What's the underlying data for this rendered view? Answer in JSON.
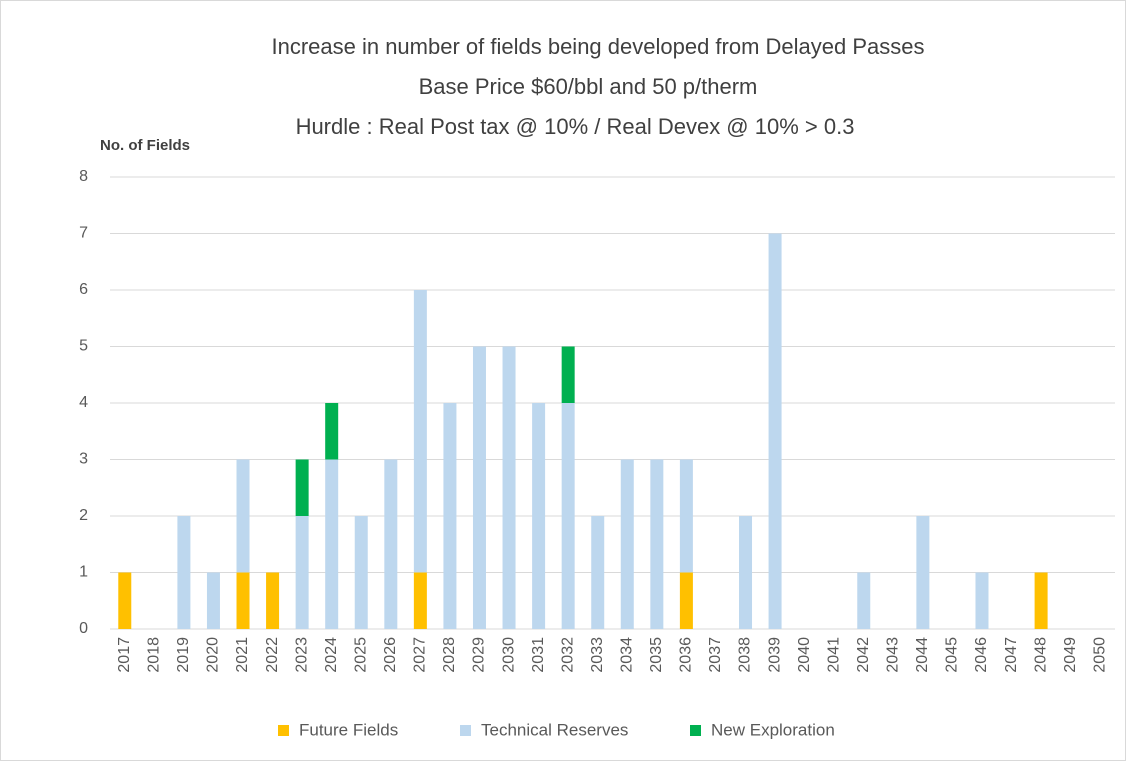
{
  "chart_data": {
    "type": "stacked_bar",
    "title": [
      "Increase in number of fields being developed from Delayed Passes",
      "Base Price $60/bbl and 50 p/therm",
      "Hurdle : Real Post tax @ 10% / Real Devex @ 10% > 0.3"
    ],
    "y_label": "No. of Fields",
    "categories": [
      "2017",
      "2018",
      "2019",
      "2020",
      "2021",
      "2022",
      "2023",
      "2024",
      "2025",
      "2026",
      "2027",
      "2028",
      "2029",
      "2030",
      "2031",
      "2032",
      "2033",
      "2034",
      "2035",
      "2036",
      "2037",
      "2038",
      "2039",
      "2040",
      "2041",
      "2042",
      "2043",
      "2044",
      "2045",
      "2046",
      "2047",
      "2048",
      "2049",
      "2050"
    ],
    "series": [
      {
        "name": "Future Fields",
        "color": "#ffc000",
        "values": [
          1,
          0,
          0,
          0,
          1,
          1,
          0,
          0,
          0,
          0,
          1,
          0,
          0,
          0,
          0,
          0,
          0,
          0,
          0,
          1,
          0,
          0,
          0,
          0,
          0,
          0,
          0,
          0,
          0,
          0,
          0,
          1,
          0,
          0
        ]
      },
      {
        "name": "Technical Reserves",
        "color": "#bdd7ee",
        "values": [
          0,
          0,
          2,
          1,
          2,
          0,
          2,
          3,
          2,
          3,
          5,
          4,
          5,
          5,
          4,
          4,
          2,
          3,
          3,
          2,
          0,
          2,
          7,
          0,
          0,
          1,
          0,
          2,
          0,
          1,
          0,
          0,
          0,
          0
        ]
      },
      {
        "name": "New Exploration",
        "color": "#00b050",
        "values": [
          0,
          0,
          0,
          0,
          0,
          0,
          1,
          1,
          0,
          0,
          0,
          0,
          0,
          0,
          0,
          1,
          0,
          0,
          0,
          0,
          0,
          0,
          0,
          0,
          0,
          0,
          0,
          0,
          0,
          0,
          0,
          0,
          0,
          0
        ]
      }
    ],
    "ylim": [
      0,
      8
    ],
    "yticks": [
      0,
      1,
      2,
      3,
      4,
      5,
      6,
      7,
      8
    ],
    "grid": true,
    "legend": "bottom"
  }
}
